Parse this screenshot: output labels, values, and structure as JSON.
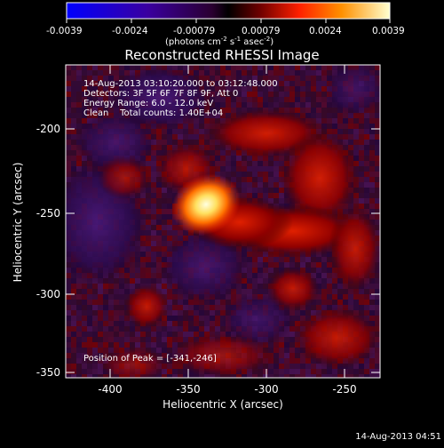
{
  "colorbar": {
    "ticks": [
      "-0.0039",
      "-0.0024",
      "-0.00079",
      "0.00079",
      "0.0024",
      "0.0039"
    ],
    "unit_main": "(photons cm",
    "unit_sup1": "-2",
    "unit_mid": " s",
    "unit_sup2": "-1",
    "unit_mid2": " asec",
    "unit_sup3": "-2",
    "unit_end": ")"
  },
  "title": "Reconstructed RHESSI Image",
  "info": {
    "line1": "14-Aug-2013 03:10:20.000 to 03:12:48.000",
    "line2": "Detectors: 3F 5F 6F 7F 8F 9F, Att 0",
    "line3": "Energy Range: 6.0 - 12.0 keV",
    "line4": "Clean    Total counts: 1.40E+04"
  },
  "peak_label": "Position of Peak = [-341,-246]",
  "axes": {
    "xlabel": "Heliocentric X (arcsec)",
    "ylabel": "Heliocentric Y (arcsec)",
    "xticks": [
      "-400",
      "-350",
      "-300",
      "-250"
    ],
    "yticks": [
      "-200",
      "-250",
      "-300",
      "-350"
    ],
    "xlim": [
      -428,
      -233
    ],
    "ylim": [
      -354,
      -159
    ]
  },
  "timestamp": "14-Aug-2013 04:51",
  "colors": {
    "background": "#000000",
    "axis": "#ffffff"
  }
}
